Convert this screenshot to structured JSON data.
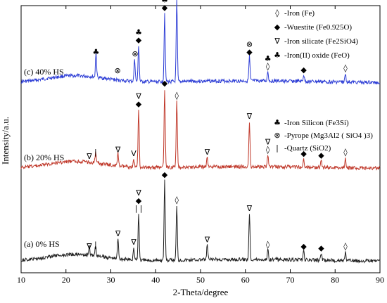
{
  "chart_data": {
    "type": "line",
    "xlabel": "2-Theta/degree",
    "ylabel": "Intensity/a.u.",
    "xlim": [
      10,
      90
    ],
    "xticks": [
      "10",
      "20",
      "30",
      "40",
      "50",
      "60",
      "70",
      "80",
      "90"
    ],
    "grid": false,
    "legend_position": "right",
    "legend": [
      {
        "symbol": "◊",
        "text": "-Iron (Fe)"
      },
      {
        "symbol": "◆",
        "text": "-Wuestite (Fe0.925O)"
      },
      {
        "symbol": "∇",
        "text": "-Iron silicate (Fe2SiO4)"
      },
      {
        "symbol": "♣",
        "text": "-Iron(II) oxide (FeO)"
      },
      {
        "symbol": "♣",
        "text": "-Iron Silicon (Fe3Si)"
      },
      {
        "symbol": "⊗",
        "text": "-Pyrope (Mg3Al2 ( SiO4 )3)"
      },
      {
        "symbol": "|",
        "text": "-Quartz (SiO2)"
      }
    ],
    "series": [
      {
        "name": "(c) 40% HS",
        "color": "#2f3fd6",
        "peaks": [
          {
            "x": 26.7,
            "h": 0.3
          },
          {
            "x": 35.3,
            "h": 0.28
          },
          {
            "x": 36.2,
            "h": 0.45
          },
          {
            "x": 42.0,
            "h": 0.85
          },
          {
            "x": 44.7,
            "h": 1.0
          },
          {
            "x": 60.9,
            "h": 0.3
          },
          {
            "x": 65.0,
            "h": 0.12
          },
          {
            "x": 73.0,
            "h": 0.08
          },
          {
            "x": 82.3,
            "h": 0.1
          }
        ],
        "markers": [
          {
            "x": 26.7,
            "symbols": [
              "♣"
            ]
          },
          {
            "x": 31.5,
            "symbols": [
              "⊗"
            ]
          },
          {
            "x": 35.4,
            "symbols": [
              "⊗"
            ]
          },
          {
            "x": 36.2,
            "symbols": [
              "♣",
              "◆"
            ]
          },
          {
            "x": 42.0,
            "symbols": [
              "♣",
              "◆"
            ]
          },
          {
            "x": 44.7,
            "symbols": [
              "♣",
              "◊"
            ]
          },
          {
            "x": 60.9,
            "symbols": [
              "⊗",
              "◆"
            ]
          },
          {
            "x": 65.0,
            "symbols": [
              "♣",
              "◊"
            ]
          },
          {
            "x": 73.0,
            "symbols": [
              "◆"
            ]
          },
          {
            "x": 82.3,
            "symbols": [
              "◊"
            ]
          }
        ]
      },
      {
        "name": "(b) 20% HS",
        "color": "#c0392b",
        "peaks": [
          {
            "x": 26.6,
            "h": 0.12
          },
          {
            "x": 31.6,
            "h": 0.15
          },
          {
            "x": 35.1,
            "h": 0.1
          },
          {
            "x": 36.2,
            "h": 0.7
          },
          {
            "x": 42.0,
            "h": 0.95
          },
          {
            "x": 44.7,
            "h": 0.8
          },
          {
            "x": 51.5,
            "h": 0.12
          },
          {
            "x": 60.9,
            "h": 0.55
          },
          {
            "x": 65.0,
            "h": 0.15
          },
          {
            "x": 73.0,
            "h": 0.1
          },
          {
            "x": 76.9,
            "h": 0.08
          },
          {
            "x": 82.3,
            "h": 0.12
          }
        ],
        "markers": [
          {
            "x": 25.2,
            "symbols": [
              "∇"
            ]
          },
          {
            "x": 26.6,
            "symbols": [
              "|"
            ]
          },
          {
            "x": 31.6,
            "symbols": [
              "∇"
            ]
          },
          {
            "x": 35.1,
            "symbols": [
              "V"
            ]
          },
          {
            "x": 36.2,
            "symbols": [
              "∇",
              "◆"
            ]
          },
          {
            "x": 42.0,
            "symbols": [
              "◆"
            ]
          },
          {
            "x": 44.7,
            "symbols": [
              "◊"
            ]
          },
          {
            "x": 51.5,
            "symbols": [
              "∇"
            ]
          },
          {
            "x": 60.9,
            "symbols": [
              "∇"
            ]
          },
          {
            "x": 65.0,
            "symbols": [
              "∇",
              "◊"
            ]
          },
          {
            "x": 73.0,
            "symbols": [
              "◆"
            ]
          },
          {
            "x": 76.9,
            "symbols": [
              "◆"
            ]
          },
          {
            "x": 82.3,
            "symbols": [
              "◊"
            ]
          }
        ]
      },
      {
        "name": "(a) 0% HS",
        "color": "#222222",
        "peaks": [
          {
            "x": 25.2,
            "h": 0.1
          },
          {
            "x": 26.6,
            "h": 0.12
          },
          {
            "x": 31.6,
            "h": 0.25
          },
          {
            "x": 35.1,
            "h": 0.15
          },
          {
            "x": 36.2,
            "h": 0.55
          },
          {
            "x": 42.0,
            "h": 0.95
          },
          {
            "x": 44.7,
            "h": 0.65
          },
          {
            "x": 51.5,
            "h": 0.18
          },
          {
            "x": 60.9,
            "h": 0.55
          },
          {
            "x": 65.0,
            "h": 0.12
          },
          {
            "x": 73.0,
            "h": 0.1
          },
          {
            "x": 76.9,
            "h": 0.08
          },
          {
            "x": 82.3,
            "h": 0.1
          }
        ],
        "markers": [
          {
            "x": 25.2,
            "symbols": [
              "∇"
            ]
          },
          {
            "x": 26.6,
            "symbols": [
              "|"
            ]
          },
          {
            "x": 31.6,
            "symbols": [
              "∇"
            ]
          },
          {
            "x": 35.1,
            "symbols": [
              "∇"
            ]
          },
          {
            "x": 36.2,
            "symbols": [
              "∇",
              "◆",
              "| |"
            ]
          },
          {
            "x": 42.0,
            "symbols": [
              "◆"
            ]
          },
          {
            "x": 44.7,
            "symbols": [
              "◊"
            ]
          },
          {
            "x": 51.5,
            "symbols": [
              "∇"
            ]
          },
          {
            "x": 60.9,
            "symbols": [
              "∇"
            ]
          },
          {
            "x": 65.0,
            "symbols": [
              "◊"
            ]
          },
          {
            "x": 73.0,
            "symbols": [
              "◆"
            ]
          },
          {
            "x": 76.9,
            "symbols": [
              "◆"
            ]
          },
          {
            "x": 82.3,
            "symbols": [
              "◊"
            ]
          }
        ]
      }
    ]
  }
}
